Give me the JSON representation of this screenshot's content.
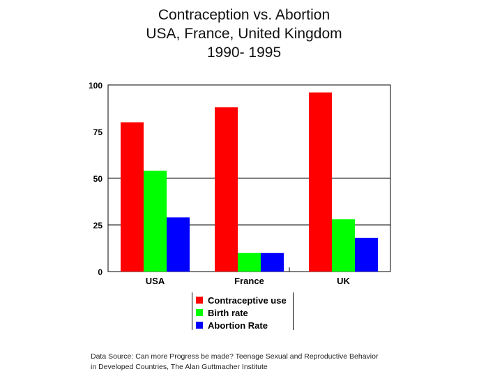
{
  "chart_data": {
    "type": "bar",
    "title": [
      "Contraception vs. Abortion",
      "USA, France, United Kingdom",
      "1990- 1995"
    ],
    "categories": [
      "USA",
      "France",
      "UK"
    ],
    "series": [
      {
        "name": "Contraceptive use",
        "color": "#ff0000",
        "values": [
          80,
          88,
          96
        ]
      },
      {
        "name": "Birth rate",
        "color": "#00ff00",
        "values": [
          54,
          10,
          28
        ]
      },
      {
        "name": "Abortion Rate",
        "color": "#0000ff",
        "values": [
          29,
          10,
          18
        ]
      }
    ],
    "ylim": [
      0,
      100
    ],
    "yticks": [
      0,
      25,
      50,
      75,
      100
    ],
    "gridlines": [
      25,
      50,
      100
    ],
    "xlabel": "",
    "ylabel": "",
    "legend_position": "bottom-center"
  },
  "source": {
    "line1": "Data Source: Can more Progress be made? Teenage Sexual and Reproductive Behavior",
    "line2": "in Developed Countries, The Alan Guttmacher Institute"
  }
}
